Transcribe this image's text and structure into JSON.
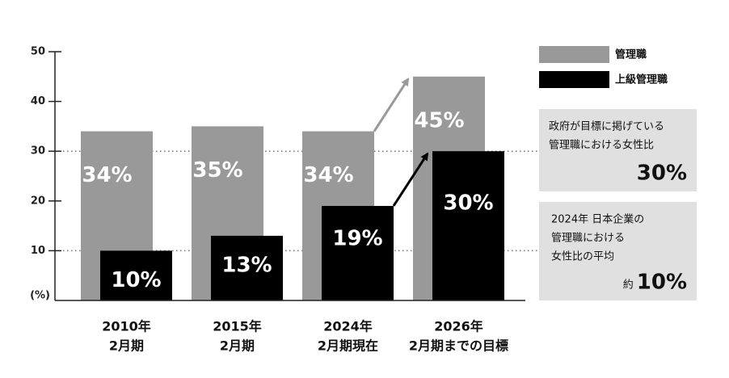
{
  "chart_data": {
    "type": "bar",
    "categories": [
      [
        "2010年",
        "2月期"
      ],
      [
        "2015年",
        "2月期"
      ],
      [
        "2024年",
        "2月期現在"
      ],
      [
        "2026年",
        "2月期までの目標"
      ]
    ],
    "series": [
      {
        "name": "管理職",
        "color": "#999999",
        "values": [
          34,
          35,
          34,
          45
        ],
        "value_labels": [
          "34%",
          "35%",
          "34%",
          "45%"
        ]
      },
      {
        "name": "上級管理職",
        "color": "#000000",
        "values": [
          10,
          13,
          19,
          30
        ],
        "value_labels": [
          "10%",
          "13%",
          "19%",
          "30%"
        ]
      }
    ],
    "ylim": [
      0,
      50
    ],
    "yticks": [
      10,
      20,
      30,
      40,
      50
    ],
    "y_unit": "(%)",
    "annotations": [
      {
        "lines": [
          "政府が目標に掲げている",
          "管理職における女性比"
        ],
        "value": 30,
        "value_label": "30%"
      },
      {
        "lines": [
          "2024年 日本企業の",
          "管理職における",
          "女性比の平均"
        ],
        "prefix": "約",
        "value": 10,
        "value_label": "10%"
      }
    ]
  }
}
